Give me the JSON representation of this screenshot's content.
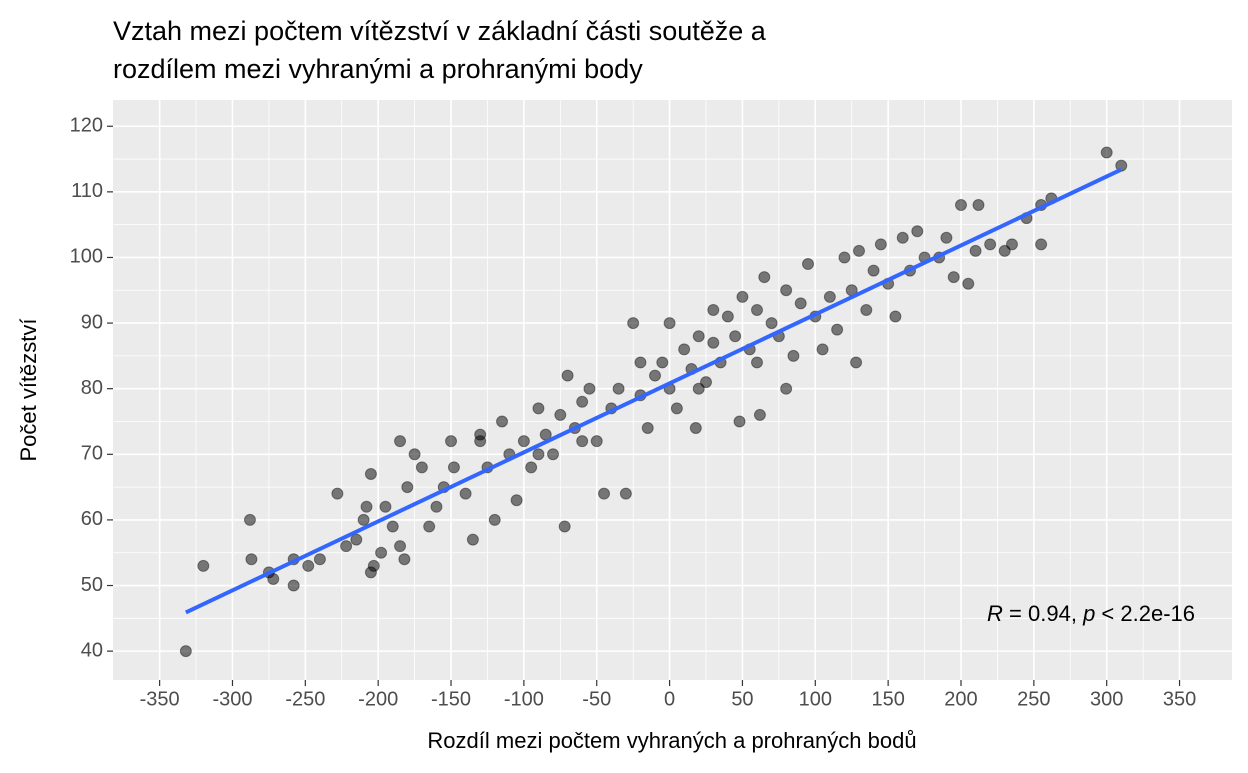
{
  "chart_data": {
    "type": "scatter",
    "title": [
      "Vztah mezi počtem vítězství v základní části soutěže a",
      "rozdílem mezi vyhranými a prohranými body"
    ],
    "x_label": "Rozdíl mezi počtem vyhraných a prohraných bodů",
    "y_label": "Počet vítězství",
    "xlim": [
      -382,
      386
    ],
    "ylim": [
      35.6,
      124
    ],
    "xticks": [
      -350,
      -300,
      -250,
      -200,
      -150,
      -100,
      -50,
      0,
      50,
      100,
      150,
      200,
      250,
      300,
      350
    ],
    "yticks": [
      40,
      50,
      60,
      70,
      80,
      90,
      100,
      110,
      120
    ],
    "grid": true,
    "point_color": "#000000",
    "x": [
      -332,
      -320,
      -288,
      -287,
      -275,
      -272,
      -258,
      -258,
      -248,
      -240,
      -228,
      -222,
      -215,
      -208,
      -210,
      -205,
      -205,
      -203,
      -198,
      -195,
      -190,
      -185,
      -185,
      -182,
      -180,
      -175,
      -170,
      -165,
      -160,
      -155,
      -150,
      -148,
      -140,
      -135,
      -130,
      -125,
      -120,
      -115,
      -110,
      -105,
      -100,
      -95,
      -90,
      -85,
      -80,
      -75,
      -72,
      -70,
      -65,
      -60,
      -55,
      -50,
      -45,
      -40,
      -35,
      -30,
      -25,
      -20,
      -15,
      -10,
      -5,
      0,
      5,
      10,
      15,
      18,
      20,
      25,
      30,
      35,
      40,
      45,
      50,
      48,
      55,
      60,
      62,
      65,
      70,
      75,
      80,
      85,
      90,
      95,
      100,
      105,
      110,
      115,
      120,
      125,
      128,
      130,
      135,
      140,
      145,
      150,
      155,
      160,
      165,
      170,
      175,
      185,
      190,
      195,
      205,
      200,
      210,
      212,
      220,
      230,
      235,
      245,
      255,
      255,
      262,
      300,
      310,
      -130,
      -90,
      20,
      60,
      80,
      -20,
      30,
      0,
      -60
    ],
    "y": [
      40,
      53,
      60,
      54,
      52,
      51,
      54,
      50,
      53,
      54,
      64,
      56,
      57,
      62,
      60,
      67,
      52,
      53,
      55,
      62,
      59,
      72,
      56,
      54,
      65,
      70,
      68,
      59,
      62,
      65,
      72,
      68,
      64,
      57,
      73,
      68,
      60,
      75,
      70,
      63,
      72,
      68,
      77,
      73,
      70,
      76,
      59,
      82,
      74,
      78,
      80,
      72,
      64,
      77,
      80,
      64,
      90,
      79,
      74,
      82,
      84,
      90,
      77,
      86,
      83,
      74,
      88,
      81,
      87,
      84,
      91,
      88,
      94,
      75,
      86,
      92,
      76,
      97,
      90,
      88,
      95,
      85,
      93,
      99,
      91,
      86,
      94,
      89,
      100,
      95,
      84,
      101,
      92,
      98,
      102,
      96,
      91,
      103,
      98,
      104,
      100,
      100,
      103,
      97,
      96,
      108,
      101,
      108,
      102,
      101,
      102,
      106,
      108,
      102,
      109,
      116,
      114,
      72,
      70,
      80,
      84,
      80,
      84,
      92,
      80,
      72
    ],
    "trend": {
      "x": [
        -332,
        310
      ],
      "y": [
        45.9,
        113.4
      ],
      "color": "#3366ff"
    },
    "annotation": {
      "r_symbol": "R",
      "r_text": " = 0.94, ",
      "p_symbol": "p",
      "p_text": " < 2.2e-16"
    }
  }
}
